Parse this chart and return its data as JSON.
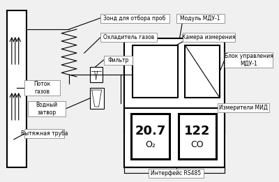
{
  "bg_color": "#f0f0f0",
  "fig_bg": "#f0f0f0",
  "title": "",
  "labels": {
    "zond": "Зонд для отбора проб",
    "ohladitel": "Охладитель газов",
    "filtr": "Фильтр",
    "potok": "Поток\nгазов",
    "vodny": "Водный\nзатвор",
    "vytazh": "Вытяжная труба",
    "mdu": "Модуль МДУ-1",
    "kamera": "Камера измерения",
    "blok": "Блок управления\nМДУ-1",
    "izmer": "Измерители МИД",
    "interf": "Интерфейс RS485",
    "val1": "20.7",
    "unit1": "O₂",
    "val2": "122",
    "unit2": "CO"
  },
  "colors": {
    "box_edge": "#000000",
    "label_box_edge": "#888888",
    "label_box_face": "#ffffff",
    "line": "#000000",
    "text": "#000000",
    "fill": "#ffffff"
  }
}
